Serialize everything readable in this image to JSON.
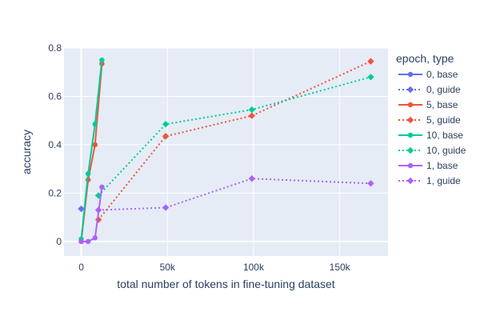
{
  "chart_data": {
    "type": "line",
    "title": "",
    "xlabel": "total number of tokens in fine-tuning dataset",
    "ylabel": "accuracy",
    "xlim": [
      -10000,
      178000
    ],
    "ylim": [
      -0.06,
      0.8
    ],
    "x_ticks": [
      0,
      50000,
      100000,
      150000
    ],
    "x_tick_labels": [
      "0",
      "50k",
      "100k",
      "150k"
    ],
    "y_ticks": [
      0,
      0.2,
      0.4,
      0.6,
      0.8
    ],
    "y_tick_labels": [
      "0",
      "0.2",
      "0.4",
      "0.6",
      "0.8"
    ],
    "grid": true,
    "plot_background": "#e5ecf6",
    "legend": {
      "title": "epoch, type",
      "placement": "right"
    },
    "series": [
      {
        "name": "0, base",
        "color": "#636efa",
        "dash": "solid",
        "marker": "circle",
        "x": [
          0
        ],
        "y": [
          0.0
        ]
      },
      {
        "name": "0, guide",
        "color": "#636efa",
        "dash": "dot",
        "marker": "diamond",
        "x": [
          0
        ],
        "y": [
          0.135
        ]
      },
      {
        "name": "5, base",
        "color": "#ef553b",
        "dash": "solid",
        "marker": "circle",
        "x": [
          0,
          4000,
          8000,
          12000
        ],
        "y": [
          0.0,
          0.255,
          0.4,
          0.735
        ]
      },
      {
        "name": "5, guide",
        "color": "#ef553b",
        "dash": "dot",
        "marker": "diamond",
        "x": [
          10000,
          49000,
          99000,
          168000
        ],
        "y": [
          0.09,
          0.435,
          0.52,
          0.745
        ]
      },
      {
        "name": "10, base",
        "color": "#00cc96",
        "dash": "solid",
        "marker": "circle",
        "x": [
          0,
          4000,
          8000,
          12000
        ],
        "y": [
          0.01,
          0.28,
          0.485,
          0.75
        ]
      },
      {
        "name": "10, guide",
        "color": "#00cc96",
        "dash": "dot",
        "marker": "diamond",
        "x": [
          10000,
          49000,
          99000,
          168000
        ],
        "y": [
          0.19,
          0.485,
          0.545,
          0.68
        ]
      },
      {
        "name": "1, base",
        "color": "#ab63fa",
        "dash": "solid",
        "marker": "circle",
        "x": [
          0,
          4000,
          8000,
          12000
        ],
        "y": [
          0.0,
          0.0,
          0.015,
          0.225
        ]
      },
      {
        "name": "1, guide",
        "color": "#ab63fa",
        "dash": "dot",
        "marker": "diamond",
        "x": [
          10000,
          49000,
          99000,
          168000
        ],
        "y": [
          0.13,
          0.14,
          0.26,
          0.24
        ]
      }
    ]
  }
}
